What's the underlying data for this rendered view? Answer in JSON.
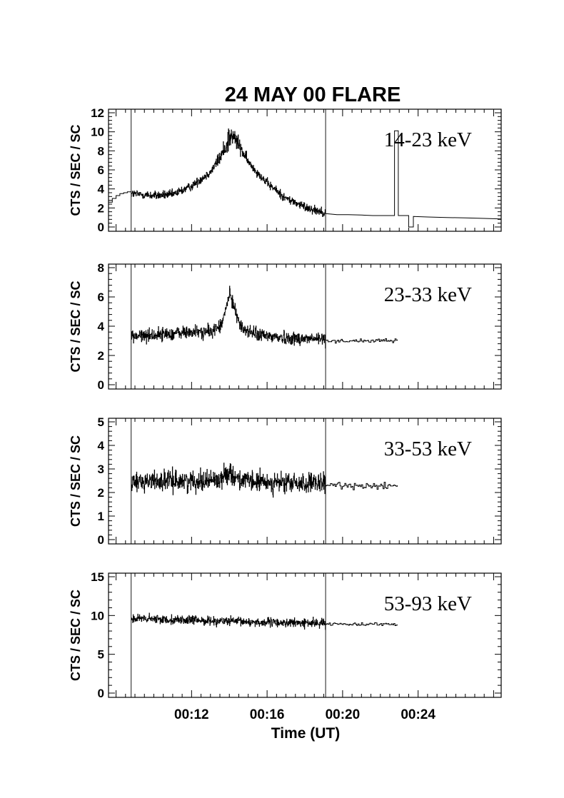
{
  "chart_data": {
    "type": "line",
    "title": "24 MAY 00 FLARE",
    "xlabel": "Time (UT)",
    "ylabel": "CTS / SEC / SC",
    "xlim_minutes": [
      7.6,
      28.4
    ],
    "xticks": [
      {
        "label": "00:12",
        "value": 12
      },
      {
        "label": "00:16",
        "value": 16
      },
      {
        "label": "00:20",
        "value": 20
      },
      {
        "label": "00:24",
        "value": 24
      }
    ],
    "vertical_markers_minutes": [
      8.8,
      19.1
    ],
    "panels": [
      {
        "band": "14-23 keV",
        "ylim": [
          0,
          12
        ],
        "yticks": [
          0,
          2,
          4,
          6,
          8,
          10,
          12
        ],
        "pre_segment": [
          [
            7.6,
            2.6
          ],
          [
            7.8,
            3.0
          ],
          [
            8.0,
            3.3
          ],
          [
            8.2,
            3.5
          ],
          [
            8.4,
            3.6
          ],
          [
            8.6,
            3.7
          ],
          [
            8.8,
            3.7
          ]
        ],
        "profile": [
          [
            8.8,
            3.5
          ],
          [
            10.0,
            3.3
          ],
          [
            11.0,
            3.4
          ],
          [
            12.0,
            4.3
          ],
          [
            13.0,
            5.8
          ],
          [
            13.6,
            7.6
          ],
          [
            14.0,
            9.5
          ],
          [
            14.3,
            9.3
          ],
          [
            15.0,
            6.8
          ],
          [
            16.0,
            4.6
          ],
          [
            17.0,
            3.0
          ],
          [
            18.0,
            2.1
          ],
          [
            19.1,
            1.5
          ]
        ],
        "noise_amp": 0.45,
        "peak_extra": [
          [
            14.0,
            1.0
          ],
          [
            14.3,
            0.6
          ]
        ],
        "post_segment": [
          [
            19.1,
            1.4
          ],
          [
            19.7,
            1.3
          ],
          [
            20.3,
            1.3
          ],
          [
            21.0,
            1.25
          ],
          [
            21.6,
            1.2
          ],
          [
            22.2,
            1.2
          ],
          [
            22.75,
            1.2
          ],
          [
            22.75,
            10.1
          ],
          [
            22.95,
            10.1
          ],
          [
            22.95,
            1.2
          ],
          [
            23.5,
            1.2
          ],
          [
            23.5,
            0.0
          ],
          [
            23.75,
            0.0
          ],
          [
            23.75,
            1.1
          ],
          [
            24.5,
            1.05
          ],
          [
            25.5,
            1.0
          ],
          [
            26.5,
            0.95
          ],
          [
            27.5,
            0.9
          ],
          [
            28.4,
            0.85
          ]
        ]
      },
      {
        "band": "23-33 keV",
        "ylim": [
          0,
          8
        ],
        "yticks": [
          0,
          2,
          4,
          6,
          8
        ],
        "profile": [
          [
            8.8,
            3.3
          ],
          [
            10.0,
            3.4
          ],
          [
            11.0,
            3.5
          ],
          [
            12.0,
            3.6
          ],
          [
            13.0,
            3.6
          ],
          [
            13.6,
            4.1
          ],
          [
            14.0,
            6.2
          ],
          [
            14.3,
            5.2
          ],
          [
            14.6,
            3.9
          ],
          [
            15.5,
            3.4
          ],
          [
            17.0,
            3.2
          ],
          [
            19.1,
            3.1
          ]
        ],
        "noise_amp": 0.45,
        "post_baseline": 3.0,
        "post_amp": 0.12,
        "post_end_minutes": 22.9
      },
      {
        "band": "33-53 keV",
        "ylim": [
          0,
          5
        ],
        "yticks": [
          0,
          1,
          2,
          3,
          4,
          5
        ],
        "profile": [
          [
            8.8,
            2.45
          ],
          [
            10.0,
            2.5
          ],
          [
            12.0,
            2.5
          ],
          [
            13.5,
            2.55
          ],
          [
            14.0,
            2.9
          ],
          [
            14.4,
            2.6
          ],
          [
            15.0,
            2.45
          ],
          [
            17.0,
            2.4
          ],
          [
            19.1,
            2.35
          ]
        ],
        "noise_amp": 0.42,
        "post_baseline": 2.3,
        "post_amp": 0.15,
        "post_end_minutes": 22.9
      },
      {
        "band": "53-93 keV",
        "ylim": [
          0,
          15
        ],
        "yticks": [
          0,
          5,
          10,
          15
        ],
        "profile": [
          [
            8.8,
            9.6
          ],
          [
            12.0,
            9.4
          ],
          [
            16.0,
            9.1
          ],
          [
            19.1,
            9.0
          ]
        ],
        "noise_amp": 0.55,
        "post_baseline": 8.9,
        "post_amp": 0.18,
        "post_end_minutes": 22.9
      }
    ]
  }
}
